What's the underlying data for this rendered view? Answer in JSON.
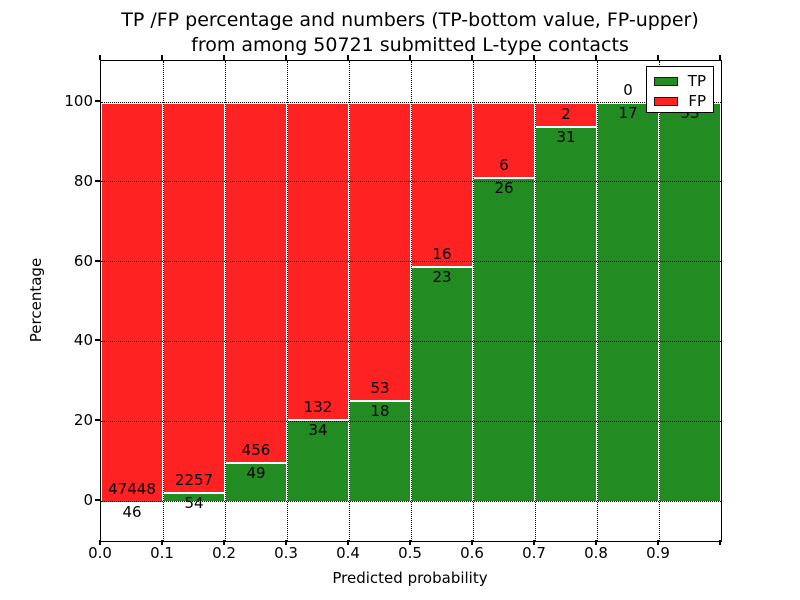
{
  "title": {
    "line1": "TP /FP percentage and numbers (TP-bottom value, FP-upper)",
    "line2": "from among 50721 submitted L-type contacts"
  },
  "axes": {
    "xlabel": "Predicted probability",
    "ylabel": "Percentage",
    "x_tick_labels": [
      "0.0",
      "0.1",
      "0.2",
      "0.3",
      "0.4",
      "0.5",
      "0.6",
      "0.7",
      "0.8",
      "0.9"
    ],
    "y_tick_labels": [
      "0",
      "20",
      "40",
      "60",
      "80",
      "100"
    ],
    "y_tick_values": [
      0,
      20,
      40,
      60,
      80,
      100
    ]
  },
  "legend": {
    "items": [
      {
        "label": "TP",
        "color": "#228B22"
      },
      {
        "label": "FP",
        "color": "#FF2222"
      }
    ]
  },
  "colors": {
    "tp_green": "#228B22",
    "fp_red": "#FF2222",
    "bar_edge": "#FFFFFF",
    "grid": "#000000"
  },
  "chart_data": {
    "type": "bar",
    "stacked": true,
    "normalized_to_percent": true,
    "title": "TP /FP percentage and numbers (TP-bottom value, FP-upper) from among 50721 submitted L-type contacts",
    "xlabel": "Predicted probability",
    "ylabel": "Percentage",
    "bin_edges": [
      0.0,
      0.1,
      0.2,
      0.3,
      0.4,
      0.5,
      0.6,
      0.7,
      0.8,
      0.9,
      1.0
    ],
    "x_tick_labels": [
      "0.0",
      "0.1",
      "0.2",
      "0.3",
      "0.4",
      "0.5",
      "0.6",
      "0.7",
      "0.8",
      "0.9"
    ],
    "y_ticks": [
      0,
      20,
      40,
      60,
      80,
      100
    ],
    "ylim_display": [
      -10,
      110
    ],
    "grid": "dotted, on top of bars",
    "legend_position": "upper right",
    "total_contacts": 50721,
    "series": [
      {
        "name": "TP",
        "color": "#228B22",
        "position": "bottom",
        "counts": [
          46,
          54,
          49,
          34,
          18,
          23,
          26,
          31,
          17,
          53
        ]
      },
      {
        "name": "FP",
        "color": "#FF2222",
        "position": "top",
        "counts": [
          47448,
          2257,
          456,
          132,
          53,
          16,
          6,
          2,
          0,
          0
        ]
      }
    ],
    "bar_label_rule": "FP count printed just above TP/FP boundary, TP count just below boundary; last bar labels partially hidden by legend"
  }
}
